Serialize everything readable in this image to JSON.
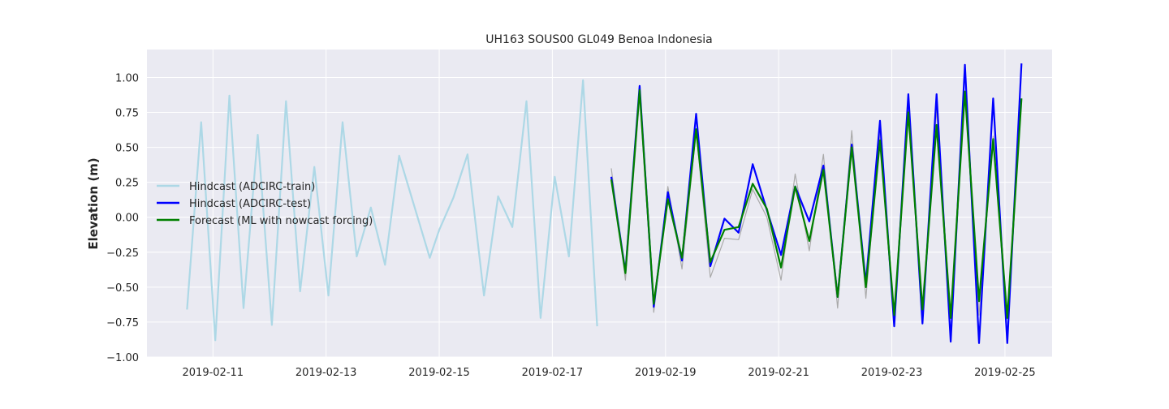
{
  "chart_data": {
    "type": "line",
    "title": "UH163 SOUS00 GL049 Benoa Indonesia",
    "xlabel": "",
    "ylabel": "Elevation (m)",
    "x_axis_type": "datetime",
    "xlim": [
      "2019-02-09T20:00",
      "2019-02-25T20:00"
    ],
    "ylim": [
      -1.0,
      1.2
    ],
    "x_ticks": [
      "2019-02-11",
      "2019-02-13",
      "2019-02-15",
      "2019-02-17",
      "2019-02-19",
      "2019-02-21",
      "2019-02-23",
      "2019-02-25"
    ],
    "y_ticks": [
      -1.0,
      -0.75,
      -0.5,
      -0.25,
      0.0,
      0.25,
      0.5,
      0.75,
      1.0
    ],
    "y_tick_labels": [
      "−1.00",
      "−0.75",
      "−0.50",
      "−0.25",
      "0.00",
      "0.25",
      "0.50",
      "0.75",
      "1.00"
    ],
    "grid": true,
    "legend_position": "center-left",
    "background": "#eaeaf2",
    "series": [
      {
        "name": "Hindcast (ADCIRC-train)",
        "color": "#add8e6",
        "legend": true,
        "points": [
          [
            "2019-02-10T13:00",
            -0.66
          ],
          [
            "2019-02-10T19:00",
            0.68
          ],
          [
            "2019-02-11T01:00",
            -0.88
          ],
          [
            "2019-02-11T07:00",
            0.87
          ],
          [
            "2019-02-11T13:00",
            -0.65
          ],
          [
            "2019-02-11T19:00",
            0.59
          ],
          [
            "2019-02-12T01:00",
            -0.77
          ],
          [
            "2019-02-12T07:00",
            0.83
          ],
          [
            "2019-02-12T13:00",
            -0.53
          ],
          [
            "2019-02-12T19:00",
            0.36
          ],
          [
            "2019-02-13T01:00",
            -0.56
          ],
          [
            "2019-02-13T07:00",
            0.68
          ],
          [
            "2019-02-13T13:00",
            -0.28
          ],
          [
            "2019-02-13T19:00",
            0.07
          ],
          [
            "2019-02-14T01:00",
            -0.34
          ],
          [
            "2019-02-14T07:00",
            0.44
          ],
          [
            "2019-02-14T20:00",
            -0.29
          ],
          [
            "2019-02-15T00:00",
            -0.09
          ],
          [
            "2019-02-15T06:00",
            0.14
          ],
          [
            "2019-02-15T12:00",
            0.45
          ],
          [
            "2019-02-15T19:00",
            -0.56
          ],
          [
            "2019-02-16T01:00",
            0.15
          ],
          [
            "2019-02-16T07:00",
            -0.07
          ],
          [
            "2019-02-16T13:00",
            0.83
          ],
          [
            "2019-02-16T19:00",
            -0.72
          ],
          [
            "2019-02-17T01:00",
            0.29
          ],
          [
            "2019-02-17T07:00",
            -0.28
          ],
          [
            "2019-02-17T13:00",
            0.98
          ],
          [
            "2019-02-17T19:00",
            -0.78
          ]
        ]
      },
      {
        "name": "",
        "color": "#aaaaaa",
        "legend": false,
        "points": [
          [
            "2019-02-18T01:00",
            0.35
          ],
          [
            "2019-02-18T07:00",
            -0.45
          ],
          [
            "2019-02-18T13:00",
            0.86
          ],
          [
            "2019-02-18T19:00",
            -0.68
          ],
          [
            "2019-02-19T01:00",
            0.22
          ],
          [
            "2019-02-19T07:00",
            -0.37
          ],
          [
            "2019-02-19T13:00",
            0.62
          ],
          [
            "2019-02-19T19:00",
            -0.43
          ],
          [
            "2019-02-20T01:00",
            -0.15
          ],
          [
            "2019-02-20T07:00",
            -0.16
          ],
          [
            "2019-02-20T13:00",
            0.2
          ],
          [
            "2019-02-20T19:00",
            0.0
          ],
          [
            "2019-02-21T01:00",
            -0.45
          ],
          [
            "2019-02-21T07:00",
            0.31
          ],
          [
            "2019-02-21T13:00",
            -0.24
          ],
          [
            "2019-02-21T19:00",
            0.45
          ],
          [
            "2019-02-22T01:00",
            -0.65
          ],
          [
            "2019-02-22T07:00",
            0.62
          ],
          [
            "2019-02-22T13:00",
            -0.58
          ],
          [
            "2019-02-22T19:00",
            0.6
          ],
          [
            "2019-02-23T01:00",
            -0.7
          ],
          [
            "2019-02-23T07:00",
            0.76
          ],
          [
            "2019-02-23T13:00",
            -0.7
          ],
          [
            "2019-02-23T19:00",
            0.77
          ],
          [
            "2019-02-24T01:00",
            -0.72
          ],
          [
            "2019-02-24T07:00",
            0.9
          ],
          [
            "2019-02-24T13:00",
            -0.7
          ],
          [
            "2019-02-24T19:00",
            0.58
          ],
          [
            "2019-02-25T01:00",
            -0.7
          ],
          [
            "2019-02-25T07:00",
            0.85
          ]
        ]
      },
      {
        "name": "Hindcast (ADCIRC-test)",
        "color": "#0000ff",
        "legend": true,
        "points": [
          [
            "2019-02-18T01:00",
            0.29
          ],
          [
            "2019-02-18T07:00",
            -0.39
          ],
          [
            "2019-02-18T13:00",
            0.94
          ],
          [
            "2019-02-18T19:00",
            -0.64
          ],
          [
            "2019-02-19T01:00",
            0.18
          ],
          [
            "2019-02-19T07:00",
            -0.31
          ],
          [
            "2019-02-19T13:00",
            0.74
          ],
          [
            "2019-02-19T19:00",
            -0.35
          ],
          [
            "2019-02-20T01:00",
            -0.01
          ],
          [
            "2019-02-20T07:00",
            -0.11
          ],
          [
            "2019-02-20T13:00",
            0.38
          ],
          [
            "2019-02-20T19:00",
            0.05
          ],
          [
            "2019-02-21T01:00",
            -0.27
          ],
          [
            "2019-02-21T07:00",
            0.22
          ],
          [
            "2019-02-21T13:00",
            -0.03
          ],
          [
            "2019-02-21T19:00",
            0.37
          ],
          [
            "2019-02-22T01:00",
            -0.57
          ],
          [
            "2019-02-22T07:00",
            0.52
          ],
          [
            "2019-02-22T13:00",
            -0.47
          ],
          [
            "2019-02-22T19:00",
            0.69
          ],
          [
            "2019-02-23T01:00",
            -0.78
          ],
          [
            "2019-02-23T07:00",
            0.88
          ],
          [
            "2019-02-23T13:00",
            -0.76
          ],
          [
            "2019-02-23T19:00",
            0.88
          ],
          [
            "2019-02-24T01:00",
            -0.89
          ],
          [
            "2019-02-24T07:00",
            1.09
          ],
          [
            "2019-02-24T13:00",
            -0.9
          ],
          [
            "2019-02-24T19:00",
            0.85
          ],
          [
            "2019-02-25T01:00",
            -0.9
          ],
          [
            "2019-02-25T07:00",
            1.1
          ]
        ]
      },
      {
        "name": "Forecast (ML with nowcast forcing)",
        "color": "#008000",
        "legend": true,
        "points": [
          [
            "2019-02-18T01:00",
            0.27
          ],
          [
            "2019-02-18T07:00",
            -0.4
          ],
          [
            "2019-02-18T13:00",
            0.91
          ],
          [
            "2019-02-18T19:00",
            -0.62
          ],
          [
            "2019-02-19T01:00",
            0.13
          ],
          [
            "2019-02-19T07:00",
            -0.29
          ],
          [
            "2019-02-19T13:00",
            0.63
          ],
          [
            "2019-02-19T19:00",
            -0.32
          ],
          [
            "2019-02-20T01:00",
            -0.09
          ],
          [
            "2019-02-20T07:00",
            -0.07
          ],
          [
            "2019-02-20T13:00",
            0.24
          ],
          [
            "2019-02-20T19:00",
            0.06
          ],
          [
            "2019-02-21T01:00",
            -0.36
          ],
          [
            "2019-02-21T07:00",
            0.22
          ],
          [
            "2019-02-21T13:00",
            -0.17
          ],
          [
            "2019-02-21T19:00",
            0.34
          ],
          [
            "2019-02-22T01:00",
            -0.57
          ],
          [
            "2019-02-22T07:00",
            0.5
          ],
          [
            "2019-02-22T13:00",
            -0.5
          ],
          [
            "2019-02-22T19:00",
            0.55
          ],
          [
            "2019-02-23T01:00",
            -0.7
          ],
          [
            "2019-02-23T07:00",
            0.75
          ],
          [
            "2019-02-23T13:00",
            -0.66
          ],
          [
            "2019-02-23T19:00",
            0.66
          ],
          [
            "2019-02-24T01:00",
            -0.72
          ],
          [
            "2019-02-24T07:00",
            0.9
          ],
          [
            "2019-02-24T13:00",
            -0.6
          ],
          [
            "2019-02-24T19:00",
            0.56
          ],
          [
            "2019-02-25T01:00",
            -0.72
          ],
          [
            "2019-02-25T07:00",
            0.85
          ]
        ]
      }
    ]
  }
}
